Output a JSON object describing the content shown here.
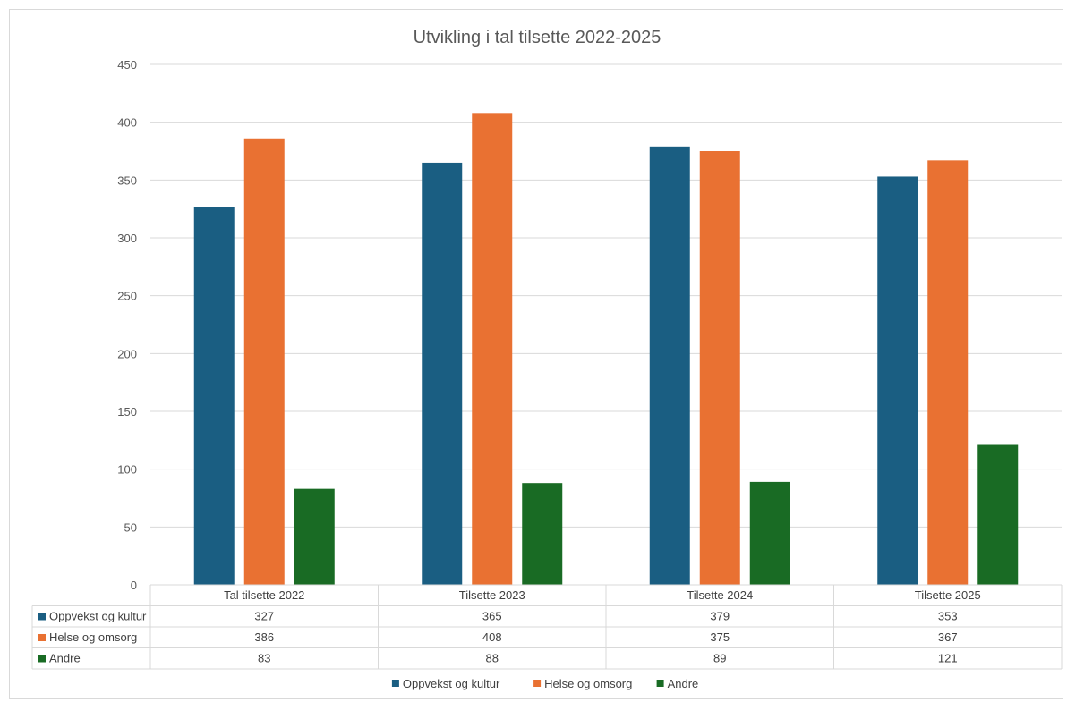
{
  "chart_data": {
    "type": "bar",
    "title": "Utvikling i tal tilsette 2022-2025",
    "categories": [
      "Tal tilsette 2022",
      "Tilsette 2023",
      "Tilsette 2024",
      "Tilsette 2025"
    ],
    "series": [
      {
        "name": "Oppvekst og kultur",
        "color": "#1a5e82",
        "values": [
          327,
          365,
          379,
          353
        ]
      },
      {
        "name": "Helse og omsorg",
        "color": "#e97132",
        "values": [
          386,
          408,
          375,
          367
        ]
      },
      {
        "name": "Andre",
        "color": "#196b24",
        "values": [
          83,
          88,
          89,
          121
        ]
      }
    ],
    "ylim": [
      0,
      450
    ],
    "yticks": [
      "0",
      "50",
      "100",
      "150",
      "200",
      "250",
      "300",
      "350",
      "400",
      "450"
    ],
    "grid": true,
    "data_table": true,
    "legend_position": "bottom"
  }
}
